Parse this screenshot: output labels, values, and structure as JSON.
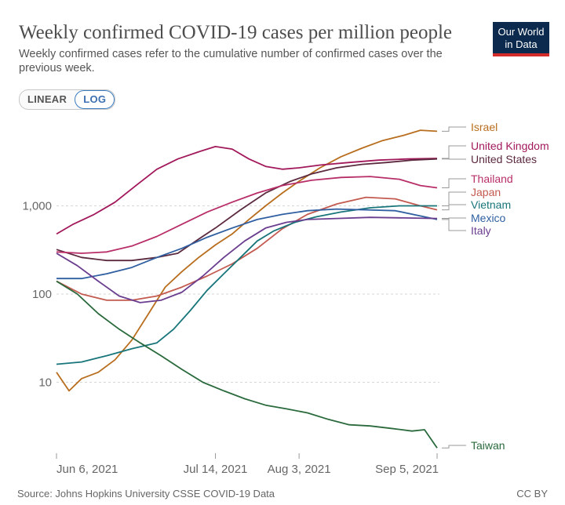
{
  "header": {
    "title": "Weekly confirmed COVID-19 cases per million people",
    "subtitle": "Weekly confirmed cases refer to the cumulative number of confirmed cases over the previous week."
  },
  "logo": {
    "line1": "Our World",
    "line2": "in Data"
  },
  "toggle": {
    "linear_label": "LINEAR",
    "log_label": "LOG",
    "active": "LOG"
  },
  "footer": {
    "source": "Source: Johns Hopkins University CSSE COVID-19 Data",
    "license": "CC BY"
  },
  "chart_data": {
    "type": "line",
    "y_scale": "log",
    "ylim": [
      3,
      10000
    ],
    "xlim": [
      "2021-06-06",
      "2021-09-05"
    ],
    "y_ticks": [
      {
        "value": 10,
        "label": "10"
      },
      {
        "value": 100,
        "label": "100"
      },
      {
        "value": 1000,
        "label": "1,000"
      }
    ],
    "x_ticks": [
      {
        "value": "2021-06-06",
        "label": "Jun 6, 2021"
      },
      {
        "value": "2021-07-14",
        "label": "Jul 14, 2021"
      },
      {
        "value": "2021-08-03",
        "label": "Aug 3, 2021"
      },
      {
        "value": "2021-09-05",
        "label": "Sep 5, 2021"
      }
    ],
    "grid": "horizontal dashed",
    "legend": "right-side labels",
    "colors": {
      "Israel": "#b86e1e",
      "United Kingdom": "#a2195b",
      "United States": "#5c2a3f",
      "Thailand": "#b82e68",
      "Japan": "#c35a50",
      "Vietnam": "#18757a",
      "Mexico": "#2f5fa0",
      "Italy": "#6a3d8f",
      "Taiwan": "#2a6a3c"
    },
    "series": [
      {
        "name": "Israel",
        "points": [
          [
            "2021-06-06",
            13
          ],
          [
            "2021-06-09",
            8
          ],
          [
            "2021-06-12",
            11
          ],
          [
            "2021-06-16",
            13
          ],
          [
            "2021-06-20",
            18
          ],
          [
            "2021-06-24",
            30
          ],
          [
            "2021-06-28",
            60
          ],
          [
            "2021-07-02",
            120
          ],
          [
            "2021-07-06",
            180
          ],
          [
            "2021-07-10",
            260
          ],
          [
            "2021-07-14",
            360
          ],
          [
            "2021-07-18",
            480
          ],
          [
            "2021-07-22",
            700
          ],
          [
            "2021-07-26",
            1000
          ],
          [
            "2021-07-30",
            1400
          ],
          [
            "2021-08-03",
            1900
          ],
          [
            "2021-08-08",
            2700
          ],
          [
            "2021-08-13",
            3600
          ],
          [
            "2021-08-18",
            4500
          ],
          [
            "2021-08-23",
            5500
          ],
          [
            "2021-08-28",
            6300
          ],
          [
            "2021-09-01",
            7200
          ],
          [
            "2021-09-05",
            7000
          ]
        ]
      },
      {
        "name": "United Kingdom",
        "points": [
          [
            "2021-06-06",
            480
          ],
          [
            "2021-06-10",
            620
          ],
          [
            "2021-06-15",
            800
          ],
          [
            "2021-06-20",
            1100
          ],
          [
            "2021-06-25",
            1700
          ],
          [
            "2021-06-30",
            2600
          ],
          [
            "2021-07-05",
            3400
          ],
          [
            "2021-07-10",
            4100
          ],
          [
            "2021-07-14",
            4700
          ],
          [
            "2021-07-18",
            4400
          ],
          [
            "2021-07-22",
            3400
          ],
          [
            "2021-07-26",
            2800
          ],
          [
            "2021-07-30",
            2600
          ],
          [
            "2021-08-03",
            2700
          ],
          [
            "2021-08-08",
            2900
          ],
          [
            "2021-08-15",
            3100
          ],
          [
            "2021-08-22",
            3300
          ],
          [
            "2021-08-29",
            3400
          ],
          [
            "2021-09-05",
            3450
          ]
        ]
      },
      {
        "name": "United States",
        "points": [
          [
            "2021-06-06",
            320
          ],
          [
            "2021-06-12",
            260
          ],
          [
            "2021-06-18",
            240
          ],
          [
            "2021-06-24",
            240
          ],
          [
            "2021-06-30",
            260
          ],
          [
            "2021-07-05",
            290
          ],
          [
            "2021-07-10",
            420
          ],
          [
            "2021-07-14",
            560
          ],
          [
            "2021-07-20",
            900
          ],
          [
            "2021-07-26",
            1400
          ],
          [
            "2021-08-01",
            1900
          ],
          [
            "2021-08-06",
            2300
          ],
          [
            "2021-08-12",
            2700
          ],
          [
            "2021-08-18",
            2950
          ],
          [
            "2021-08-24",
            3100
          ],
          [
            "2021-08-30",
            3300
          ],
          [
            "2021-09-05",
            3400
          ]
        ]
      },
      {
        "name": "Thailand",
        "points": [
          [
            "2021-06-06",
            300
          ],
          [
            "2021-06-12",
            290
          ],
          [
            "2021-06-18",
            300
          ],
          [
            "2021-06-24",
            350
          ],
          [
            "2021-06-30",
            450
          ],
          [
            "2021-07-06",
            620
          ],
          [
            "2021-07-12",
            850
          ],
          [
            "2021-07-18",
            1100
          ],
          [
            "2021-07-24",
            1400
          ],
          [
            "2021-07-30",
            1700
          ],
          [
            "2021-08-06",
            1950
          ],
          [
            "2021-08-13",
            2100
          ],
          [
            "2021-08-20",
            2150
          ],
          [
            "2021-08-27",
            2000
          ],
          [
            "2021-09-01",
            1700
          ],
          [
            "2021-09-05",
            1600
          ]
        ]
      },
      {
        "name": "Japan",
        "points": [
          [
            "2021-06-06",
            140
          ],
          [
            "2021-06-12",
            100
          ],
          [
            "2021-06-18",
            85
          ],
          [
            "2021-06-24",
            85
          ],
          [
            "2021-06-30",
            95
          ],
          [
            "2021-07-06",
            120
          ],
          [
            "2021-07-12",
            160
          ],
          [
            "2021-07-18",
            220
          ],
          [
            "2021-07-24",
            330
          ],
          [
            "2021-07-30",
            550
          ],
          [
            "2021-08-05",
            800
          ],
          [
            "2021-08-12",
            1050
          ],
          [
            "2021-08-19",
            1250
          ],
          [
            "2021-08-26",
            1200
          ],
          [
            "2021-09-01",
            1000
          ],
          [
            "2021-09-05",
            900
          ]
        ]
      },
      {
        "name": "Vietnam",
        "points": [
          [
            "2021-06-06",
            16
          ],
          [
            "2021-06-12",
            17
          ],
          [
            "2021-06-18",
            20
          ],
          [
            "2021-06-24",
            24
          ],
          [
            "2021-06-30",
            28
          ],
          [
            "2021-07-04",
            40
          ],
          [
            "2021-07-08",
            65
          ],
          [
            "2021-07-12",
            110
          ],
          [
            "2021-07-16",
            170
          ],
          [
            "2021-07-20",
            260
          ],
          [
            "2021-07-24",
            400
          ],
          [
            "2021-07-28",
            520
          ],
          [
            "2021-08-02",
            650
          ],
          [
            "2021-08-07",
            750
          ],
          [
            "2021-08-13",
            850
          ],
          [
            "2021-08-20",
            950
          ],
          [
            "2021-08-27",
            1000
          ],
          [
            "2021-09-05",
            1000
          ]
        ]
      },
      {
        "name": "Mexico",
        "points": [
          [
            "2021-06-06",
            150
          ],
          [
            "2021-06-12",
            150
          ],
          [
            "2021-06-18",
            170
          ],
          [
            "2021-06-24",
            200
          ],
          [
            "2021-06-30",
            260
          ],
          [
            "2021-07-06",
            330
          ],
          [
            "2021-07-12",
            440
          ],
          [
            "2021-07-18",
            560
          ],
          [
            "2021-07-24",
            700
          ],
          [
            "2021-07-30",
            800
          ],
          [
            "2021-08-05",
            880
          ],
          [
            "2021-08-12",
            920
          ],
          [
            "2021-08-19",
            900
          ],
          [
            "2021-08-26",
            880
          ],
          [
            "2021-09-05",
            700
          ]
        ]
      },
      {
        "name": "Italy",
        "points": [
          [
            "2021-06-06",
            290
          ],
          [
            "2021-06-11",
            210
          ],
          [
            "2021-06-16",
            140
          ],
          [
            "2021-06-21",
            95
          ],
          [
            "2021-06-26",
            80
          ],
          [
            "2021-07-01",
            85
          ],
          [
            "2021-07-06",
            105
          ],
          [
            "2021-07-11",
            160
          ],
          [
            "2021-07-16",
            260
          ],
          [
            "2021-07-21",
            400
          ],
          [
            "2021-07-26",
            560
          ],
          [
            "2021-07-31",
            650
          ],
          [
            "2021-08-05",
            700
          ],
          [
            "2021-08-12",
            720
          ],
          [
            "2021-08-20",
            740
          ],
          [
            "2021-08-28",
            730
          ],
          [
            "2021-09-05",
            720
          ]
        ]
      },
      {
        "name": "Taiwan",
        "points": [
          [
            "2021-06-06",
            140
          ],
          [
            "2021-06-11",
            100
          ],
          [
            "2021-06-16",
            60
          ],
          [
            "2021-06-21",
            40
          ],
          [
            "2021-06-26",
            28
          ],
          [
            "2021-07-01",
            20
          ],
          [
            "2021-07-06",
            14
          ],
          [
            "2021-07-11",
            10
          ],
          [
            "2021-07-16",
            8
          ],
          [
            "2021-07-21",
            6.5
          ],
          [
            "2021-07-26",
            5.5
          ],
          [
            "2021-07-31",
            5
          ],
          [
            "2021-08-05",
            4.5
          ],
          [
            "2021-08-10",
            3.8
          ],
          [
            "2021-08-15",
            3.3
          ],
          [
            "2021-08-20",
            3.2
          ],
          [
            "2021-08-25",
            3
          ],
          [
            "2021-08-30",
            2.8
          ],
          [
            "2021-09-02",
            2.9
          ],
          [
            "2021-09-05",
            1.8
          ]
        ]
      }
    ],
    "labels": [
      {
        "series": "Israel",
        "text": "Israel"
      },
      {
        "series": "United Kingdom",
        "text": "United Kingdom"
      },
      {
        "series": "United States",
        "text": "United States"
      },
      {
        "series": "Thailand",
        "text": "Thailand"
      },
      {
        "series": "Japan",
        "text": "Japan"
      },
      {
        "series": "Vietnam",
        "text": "Vietnam"
      },
      {
        "series": "Mexico",
        "text": "Mexico"
      },
      {
        "series": "Italy",
        "text": "Italy"
      },
      {
        "series": "Taiwan",
        "text": "Taiwan"
      }
    ]
  }
}
